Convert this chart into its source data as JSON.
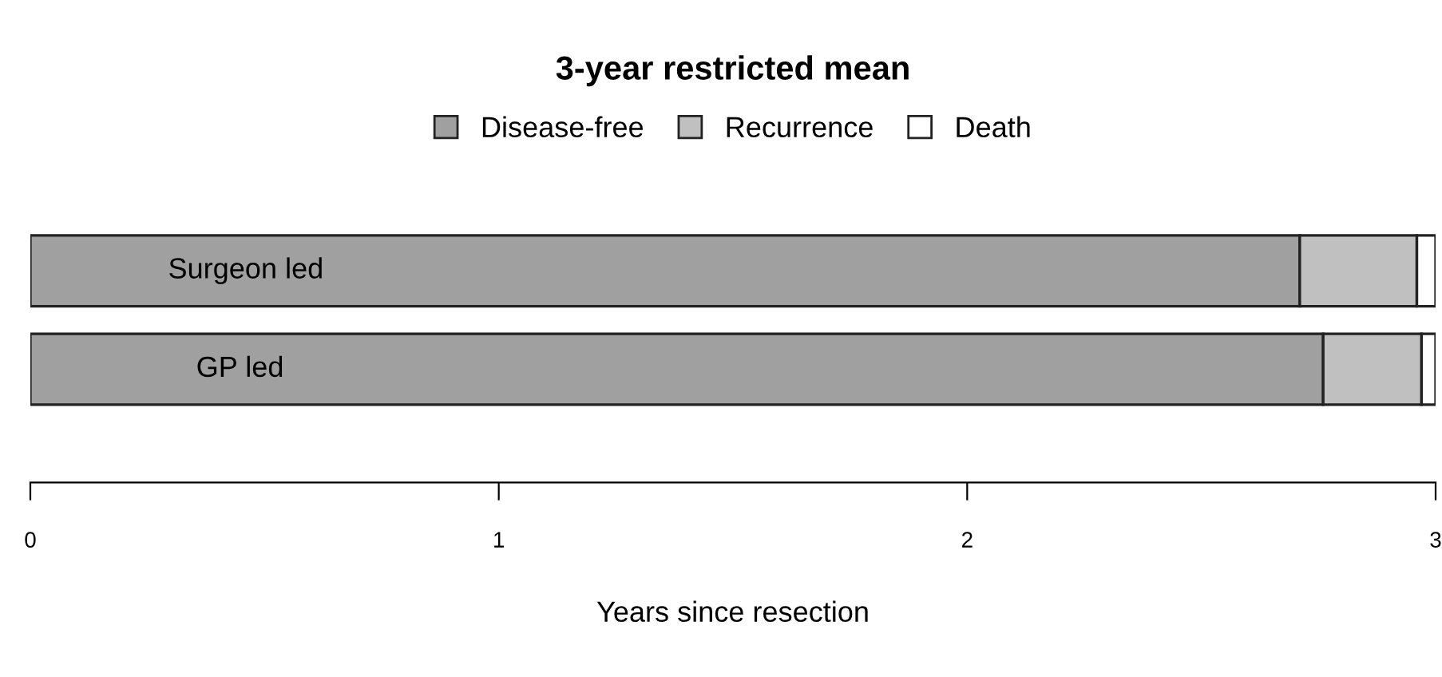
{
  "chart_data": {
    "type": "bar",
    "orientation": "horizontal",
    "stacked": true,
    "title": "3-year restricted mean",
    "xlabel": "Years since resection",
    "categories": [
      "Surgeon led",
      "GP led"
    ],
    "series": [
      {
        "name": "Disease-free",
        "color": "#a0a0a0",
        "values": [
          2.71,
          2.76
        ]
      },
      {
        "name": "Recurrence",
        "color": "#c0c0c0",
        "values": [
          0.25,
          0.21
        ]
      },
      {
        "name": "Death",
        "color": "#ffffff",
        "values": [
          0.04,
          0.03
        ]
      }
    ],
    "xlim": [
      0,
      3
    ],
    "xticks": [
      0,
      1,
      2,
      3
    ],
    "grid": false,
    "legend": "top",
    "tick_labels": "x"
  }
}
